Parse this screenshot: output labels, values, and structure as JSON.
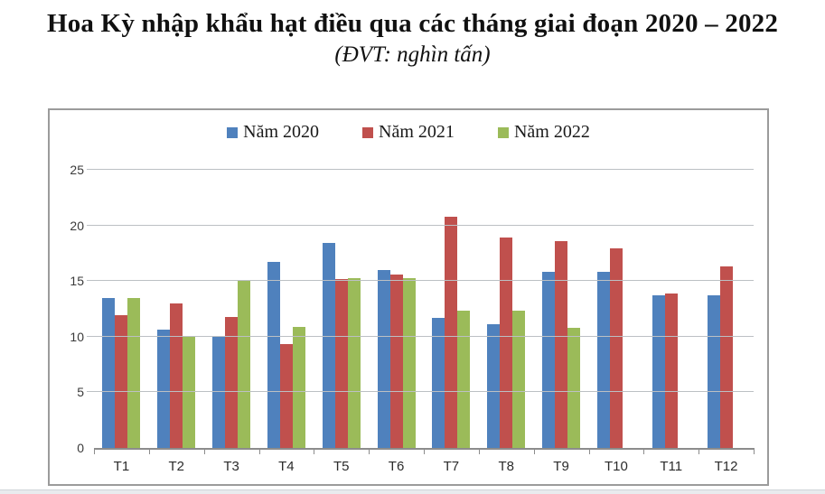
{
  "page": {
    "title": "Hoa Kỳ nhập khẩu hạt điều qua các tháng giai đoạn 2020 – 2022",
    "subtitle": "(ĐVT: nghìn tấn)"
  },
  "chart_data": {
    "type": "bar",
    "title": "Hoa Kỳ nhập khẩu hạt điều qua các tháng giai đoạn 2020 – 2022",
    "subtitle": "(ĐVT: nghìn tấn)",
    "unit": "nghìn tấn",
    "categories": [
      "T1",
      "T2",
      "T3",
      "T4",
      "T5",
      "T6",
      "T7",
      "T8",
      "T9",
      "T10",
      "T11",
      "T12"
    ],
    "series": [
      {
        "name": "Năm 2020",
        "color": "#4F81BD",
        "values": [
          13.5,
          10.6,
          10.1,
          16.7,
          18.4,
          16.0,
          11.7,
          11.1,
          15.8,
          15.8,
          13.7,
          13.7
        ]
      },
      {
        "name": "Năm 2021",
        "color": "#C0504D",
        "values": [
          11.9,
          13.0,
          11.8,
          9.3,
          15.2,
          15.6,
          20.8,
          18.9,
          18.6,
          17.9,
          13.9,
          16.3
        ]
      },
      {
        "name": "Năm 2022",
        "color": "#9BBB59",
        "values": [
          13.5,
          10.1,
          15.0,
          10.9,
          15.3,
          15.3,
          12.3,
          12.3,
          10.8,
          null,
          null,
          null
        ]
      }
    ],
    "xlabel": "",
    "ylabel": "",
    "ylim": [
      0,
      25
    ],
    "yticks": [
      0,
      5,
      10,
      15,
      20,
      25
    ],
    "grid": true,
    "legend_position": "top"
  }
}
